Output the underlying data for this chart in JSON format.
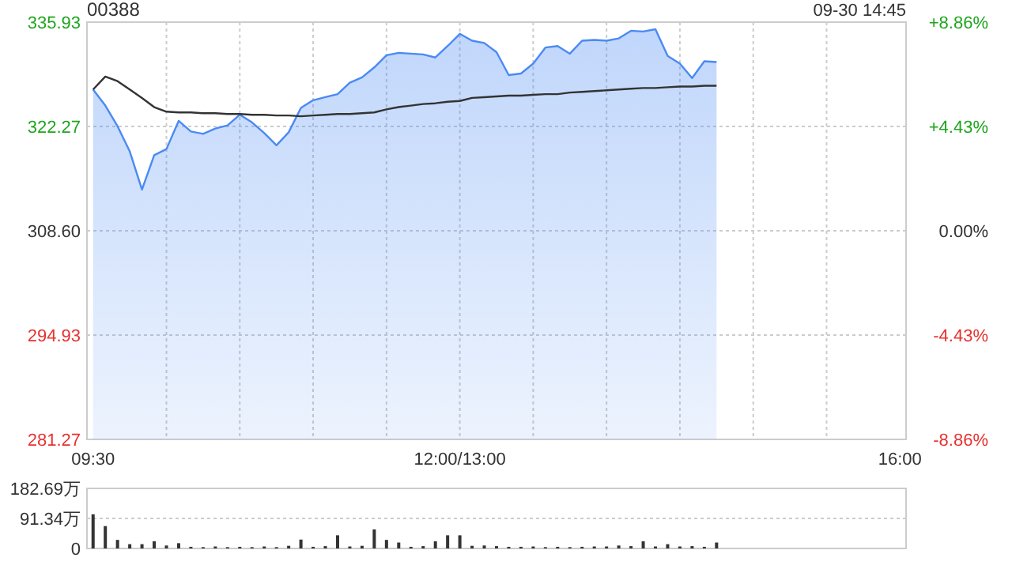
{
  "chart_data": [
    {
      "type": "area",
      "title": "00388",
      "annotations": [
        "09-30 14:45"
      ],
      "grid": true,
      "categories": [
        "09:30",
        null,
        null,
        null,
        null,
        null,
        null,
        null,
        null,
        null,
        null,
        null,
        null,
        null,
        null,
        null,
        null,
        null,
        null,
        null,
        null,
        null,
        null,
        null,
        null,
        null,
        null,
        null,
        null,
        null,
        "12:00/13:00",
        null,
        null,
        null,
        null,
        null,
        null,
        null,
        null,
        null,
        null,
        null,
        null,
        null,
        null,
        null,
        null,
        null,
        null,
        null,
        null,
        null,
        null,
        null,
        null,
        null,
        null,
        null,
        null,
        null,
        null,
        null,
        null,
        null,
        null,
        null,
        "16:00"
      ],
      "ylim": [
        281.27,
        335.93
      ],
      "yticks": [
        281.27,
        294.93,
        {
          "value": 308.6,
          "label": "308.60"
        },
        322.27,
        335.93
      ],
      "y2lim": [
        -8.86,
        8.86
      ],
      "y2ticks": [
        {
          "value": -8.86,
          "label": "-8.86%"
        },
        {
          "value": -4.43,
          "label": "-4.43%"
        },
        {
          "value": 0,
          "label": "0.00%"
        },
        {
          "value": 4.43,
          "label": "+4.43%"
        },
        {
          "value": 8.86,
          "label": "+8.86%"
        }
      ],
      "series": [
        {
          "type": "area",
          "color": "#4a8af4",
          "values": [
            327.1,
            325.0,
            322.3,
            319.0,
            314.0,
            318.5,
            319.3,
            323.0,
            321.6,
            321.3,
            322.0,
            322.4,
            323.8,
            322.8,
            321.4,
            319.8,
            321.5,
            324.7,
            325.7,
            326.1,
            326.5,
            328.0,
            328.7,
            330.0,
            331.6,
            331.9,
            331.8,
            331.7,
            331.3,
            332.8,
            334.4,
            333.5,
            333.2,
            332.0,
            329.0,
            329.2,
            330.5,
            332.6,
            332.8,
            331.8,
            333.5,
            333.6,
            333.5,
            333.8,
            334.8,
            334.7,
            335.0,
            331.5,
            330.5,
            328.6,
            330.8,
            330.7,
            null,
            null,
            null,
            null,
            null,
            null,
            null,
            null,
            null,
            null,
            null,
            null,
            null,
            null,
            null
          ]
        },
        {
          "type": "line",
          "color": "#333333",
          "values": [
            327.1,
            328.8,
            328.2,
            327.1,
            326.0,
            324.8,
            324.2,
            324.1,
            324.1,
            324.0,
            324.0,
            323.9,
            323.9,
            323.8,
            323.8,
            323.7,
            323.7,
            323.6,
            323.7,
            323.8,
            323.9,
            323.9,
            324.0,
            324.1,
            324.5,
            324.8,
            325.0,
            325.2,
            325.3,
            325.5,
            325.6,
            326.0,
            326.1,
            326.2,
            326.3,
            326.3,
            326.4,
            326.5,
            326.5,
            326.7,
            326.8,
            326.9,
            327.0,
            327.1,
            327.2,
            327.3,
            327.3,
            327.4,
            327.5,
            327.5,
            327.6,
            327.6,
            null,
            null,
            null,
            null,
            null,
            null,
            null,
            null,
            null,
            null,
            null,
            null,
            null,
            null,
            null
          ]
        }
      ]
    },
    {
      "type": "bar",
      "color": "#333333",
      "grid": "y",
      "tick_labels": "y",
      "categories": [
        null,
        null,
        null,
        null,
        null,
        null,
        null,
        null,
        null,
        null,
        null,
        null,
        null,
        null,
        null,
        null,
        null,
        null,
        null,
        null,
        null,
        null,
        null,
        null,
        null,
        null,
        null,
        null,
        null,
        null,
        null,
        null,
        null,
        null,
        null,
        null,
        null,
        null,
        null,
        null,
        null,
        null,
        null,
        null,
        null,
        null,
        null,
        null,
        null,
        null,
        null,
        null,
        null,
        null,
        null,
        null,
        null,
        null,
        null,
        null,
        null,
        null,
        null,
        null,
        null,
        null,
        null
      ],
      "ylim": [
        0,
        182.69
      ],
      "yticks": [
        0,
        {
          "value": 91.34,
          "label": "91.34万"
        },
        {
          "value": 182.69,
          "label": "182.69万"
        }
      ],
      "values": [
        104,
        68,
        26,
        13,
        13,
        22,
        9,
        16,
        5,
        4,
        6,
        4,
        5,
        4,
        6,
        4,
        8,
        27,
        5,
        7,
        40,
        6,
        8,
        58,
        26,
        18,
        5,
        7,
        22,
        40,
        40,
        8,
        9,
        7,
        5,
        5,
        6,
        4,
        5,
        4,
        5,
        6,
        6,
        9,
        7,
        22,
        6,
        13,
        6,
        7,
        5,
        18,
        null,
        null,
        null,
        null,
        null,
        null,
        null,
        null,
        null,
        null,
        null,
        null,
        null,
        null,
        null
      ]
    }
  ]
}
